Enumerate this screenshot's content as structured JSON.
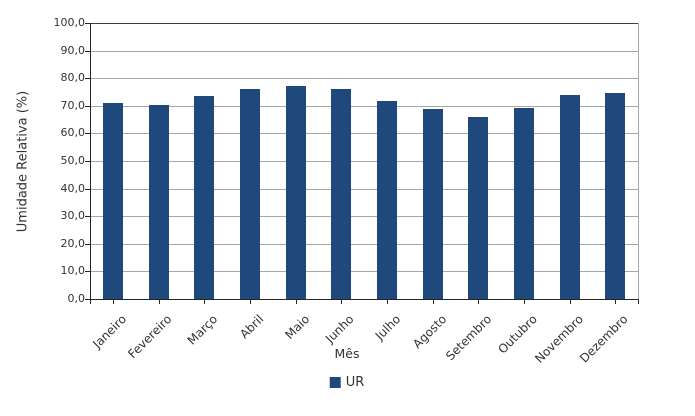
{
  "chart_data": {
    "type": "bar",
    "title": "",
    "categories": [
      "Janeiro",
      "Fevereiro",
      "Março",
      "Abril",
      "Maio",
      "Junho",
      "Julho",
      "Agosto",
      "Setembro",
      "Outubro",
      "Novembro",
      "Dezembro"
    ],
    "series": [
      {
        "name": "UR",
        "values": [
          70.9,
          70.4,
          73.6,
          76.2,
          77.3,
          76.1,
          71.7,
          69.0,
          66.1,
          69.3,
          73.9,
          74.8
        ]
      }
    ],
    "xlabel": "Mês",
    "ylabel": "Umidade Relativa (%)",
    "ylim": [
      0,
      100
    ],
    "ytick_step": 10,
    "ytick_labels": [
      "0,0",
      "10,0",
      "20,0",
      "30,0",
      "40,0",
      "50,0",
      "60,0",
      "70,0",
      "80,0",
      "90,0",
      "100,0"
    ],
    "grid": true,
    "legend_position": "bottom",
    "colors": {
      "bar": "#1f497d",
      "gridline": "#a6a6a6",
      "axis": "#262626",
      "text": "#333333"
    }
  }
}
